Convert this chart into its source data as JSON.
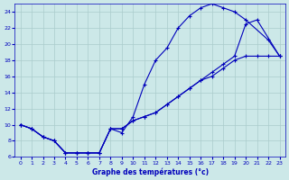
{
  "xlabel": "Graphe des températures (°c)",
  "background_color": "#cce8e8",
  "grid_color": "#aacccc",
  "line_color": "#0000bb",
  "xlim": [
    0,
    23
  ],
  "ylim": [
    6,
    25
  ],
  "yticks": [
    6,
    8,
    10,
    12,
    14,
    16,
    18,
    20,
    22,
    24
  ],
  "xticks": [
    0,
    1,
    2,
    3,
    4,
    5,
    6,
    7,
    8,
    9,
    10,
    11,
    12,
    13,
    14,
    15,
    16,
    17,
    18,
    19,
    20,
    21,
    22,
    23
  ],
  "line1_x": [
    0,
    1,
    2,
    3,
    4,
    5,
    6,
    7,
    8,
    9,
    10,
    11,
    12,
    13,
    14,
    15,
    16,
    17,
    18,
    19,
    20,
    22,
    23
  ],
  "line1_y": [
    10.0,
    9.5,
    8.5,
    8.0,
    6.5,
    6.5,
    6.5,
    6.5,
    9.5,
    9.0,
    11.0,
    15.0,
    18.0,
    19.5,
    22.0,
    23.5,
    24.5,
    25.0,
    24.5,
    24.0,
    23.0,
    20.5,
    18.5
  ],
  "line2_x": [
    0,
    1,
    2,
    3,
    4,
    5,
    6,
    7,
    8,
    9,
    10,
    11,
    12,
    13,
    14,
    15,
    16,
    17,
    18,
    19,
    20,
    21,
    22,
    23
  ],
  "line2_y": [
    10.0,
    9.5,
    8.5,
    8.0,
    6.5,
    6.5,
    6.5,
    6.5,
    9.5,
    9.5,
    10.5,
    11.0,
    11.5,
    12.5,
    13.5,
    14.5,
    15.5,
    16.0,
    17.0,
    18.0,
    18.5,
    18.5,
    18.5,
    18.5
  ],
  "line3_x": [
    0,
    1,
    2,
    3,
    4,
    5,
    6,
    7,
    8,
    9,
    10,
    11,
    12,
    13,
    14,
    15,
    16,
    17,
    18,
    19,
    20,
    21,
    23
  ],
  "line3_y": [
    10.0,
    9.5,
    8.5,
    8.0,
    6.5,
    6.5,
    6.5,
    6.5,
    9.5,
    9.5,
    10.5,
    11.0,
    11.5,
    12.5,
    13.5,
    14.5,
    15.5,
    16.5,
    17.5,
    18.5,
    22.5,
    23.0,
    18.5
  ]
}
